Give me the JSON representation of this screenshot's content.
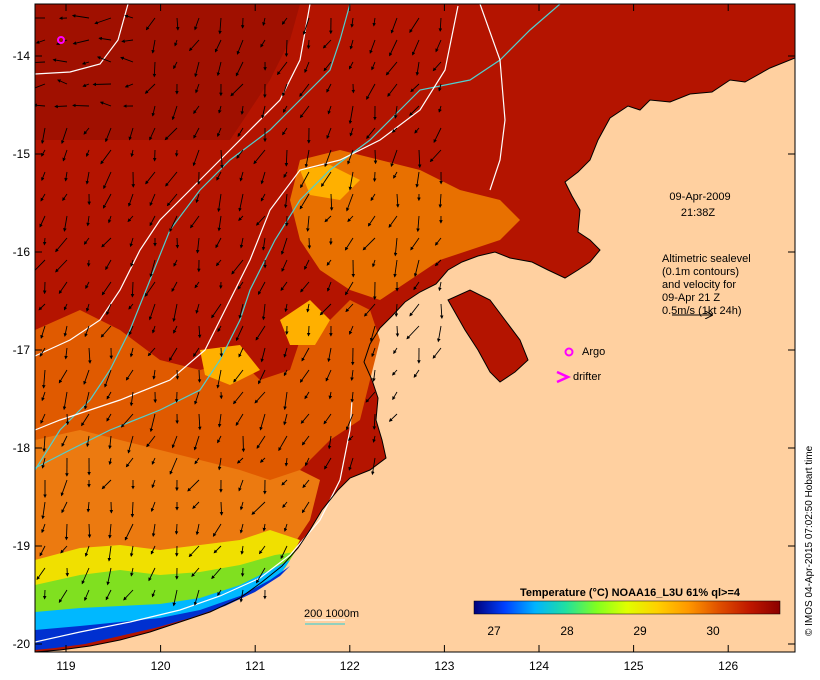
{
  "map": {
    "x_axis": {
      "ticks": [
        "119",
        "120",
        "121",
        "122",
        "123",
        "124",
        "125",
        "126"
      ]
    },
    "y_axis": {
      "ticks": [
        "-14",
        "-15",
        "-16",
        "-17",
        "-18",
        "-19",
        "-20"
      ]
    },
    "timestamp": {
      "date": "09-Apr-2009",
      "time": "21:38Z"
    },
    "altimetry_note": [
      "Altimetric sealevel",
      "(0.1m contours)",
      "and velocity for",
      "09-Apr 21 Z",
      "0.5m/s (1kt 24h)"
    ],
    "legend": {
      "argo": "Argo",
      "drifter": "drifter"
    },
    "depth_contours_label": "200  1000m",
    "colorbar": {
      "title": "Temperature (°C) NOAA16_L3U 61% ql>=4",
      "ticks": [
        "27",
        "28",
        "29",
        "30"
      ],
      "colors": [
        "#00007a",
        "#0040ff",
        "#00b4ff",
        "#20e0a0",
        "#80ff20",
        "#e0ff00",
        "#ffd000",
        "#ff9800",
        "#e05000",
        "#c01800",
        "#8b0000"
      ]
    },
    "credit": "© IMOS 04-Apr-2015 07:02:50 Hobart time",
    "colors": {
      "land": "#ffd0a0",
      "sea_warm": "#b41400",
      "arrow": "#000000",
      "argo": "#ff00ff",
      "isobath_200": "#50d0d0",
      "isobath_1000": "#ffffff"
    }
  }
}
